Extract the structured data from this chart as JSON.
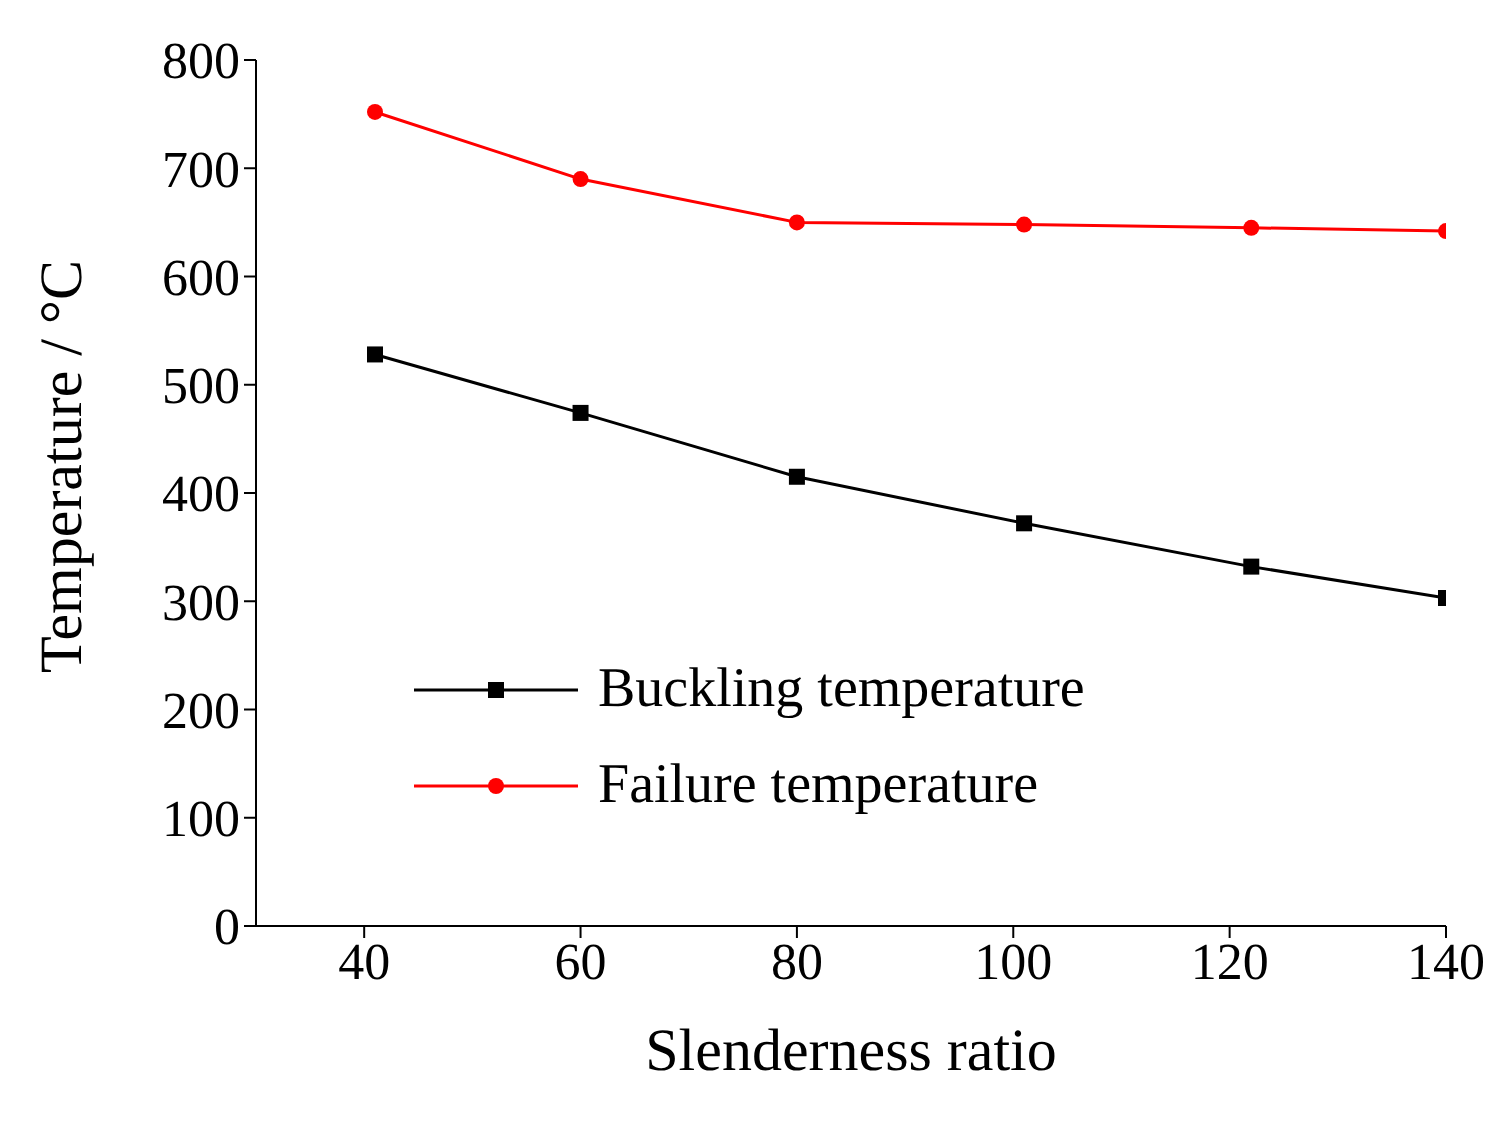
{
  "chart_data": {
    "type": "line",
    "xlabel": "Slenderness ratio",
    "ylabel": "Temperature / °C",
    "xlim": [
      30,
      140
    ],
    "xticks": [
      40,
      60,
      80,
      100,
      120,
      140
    ],
    "ylim": [
      0,
      800
    ],
    "yticks": [
      0,
      100,
      200,
      300,
      400,
      500,
      600,
      700,
      800
    ],
    "x": [
      41,
      60,
      80,
      101,
      122,
      140
    ],
    "series": [
      {
        "name": "Buckling temperature",
        "color": "#000000",
        "marker": "square",
        "values": [
          528,
          474,
          415,
          372,
          332,
          303
        ]
      },
      {
        "name": "Failure temperature",
        "color": "#ff0000",
        "marker": "circle",
        "values": [
          752,
          690,
          650,
          648,
          645,
          642
        ]
      }
    ],
    "grid": false,
    "legend": "bottom"
  }
}
